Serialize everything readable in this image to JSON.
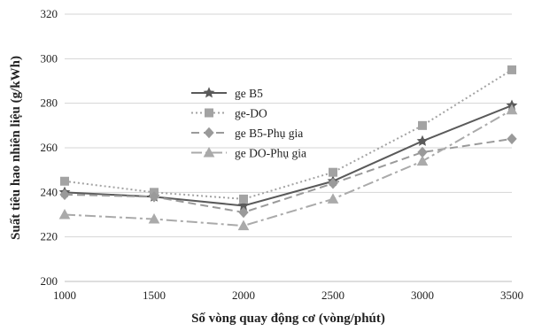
{
  "chart_data": {
    "type": "line",
    "xlabel": "Số vòng quay động cơ (vòng/phút)",
    "ylabel": "Suất tiêu hao nhiên liệu (g/kWh)",
    "x": [
      1000,
      1500,
      2000,
      2500,
      3000,
      3500
    ],
    "xlim": [
      1000,
      3500
    ],
    "ylim": [
      200,
      320
    ],
    "x_ticks": [
      "1000",
      "1500",
      "2000",
      "2500",
      "3000",
      "3500"
    ],
    "y_ticks": [
      "200",
      "220",
      "240",
      "260",
      "280",
      "300",
      "320"
    ],
    "grid": "horizontal",
    "legend_position": "center-left",
    "series": [
      {
        "name": "ge B5",
        "values": [
          240,
          238,
          234,
          245,
          263,
          279
        ],
        "color": "#5a5a5a",
        "marker": "star",
        "dash": "solid"
      },
      {
        "name": "ge-DO",
        "values": [
          245,
          240,
          237,
          249,
          270,
          295
        ],
        "color": "#a3a3a3",
        "marker": "square",
        "dash": "dotted"
      },
      {
        "name": "ge B5-Phụ gia",
        "values": [
          239,
          238,
          231,
          244,
          258,
          264
        ],
        "color": "#9a9a9a",
        "marker": "diamond",
        "dash": "dashed"
      },
      {
        "name": "ge DO-Phụ gia",
        "values": [
          230,
          228,
          225,
          237,
          254,
          277
        ],
        "color": "#aaaaaa",
        "marker": "triangle",
        "dash": "dashdot"
      }
    ]
  }
}
